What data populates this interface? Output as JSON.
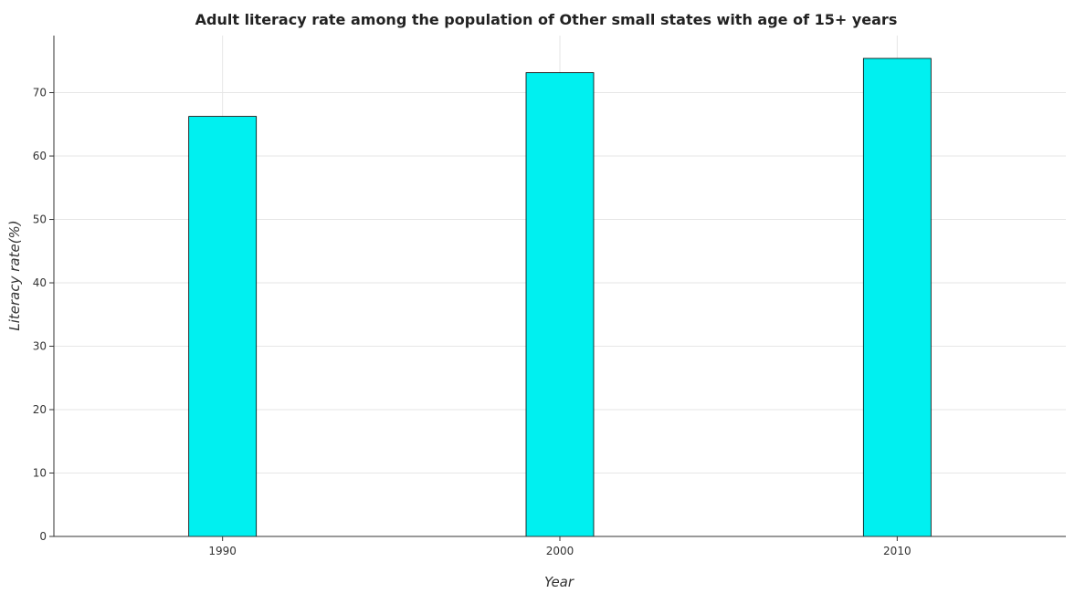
{
  "chart_data": {
    "type": "bar",
    "title": "Adult literacy rate among the population of Other small states with age of 15+ years",
    "xlabel": "Year",
    "ylabel": "Literacy rate(%)",
    "categories": [
      "1990",
      "2000",
      "2010"
    ],
    "values": [
      66.25,
      73.15,
      75.4
    ],
    "ylim": [
      0,
      79
    ],
    "yticks": [
      0,
      10,
      20,
      30,
      40,
      50,
      60,
      70
    ],
    "grid": true,
    "legend": "none",
    "colors": {
      "bar": "#00f0f0",
      "grid": "#e6e6e6",
      "axis": "#333333"
    }
  }
}
